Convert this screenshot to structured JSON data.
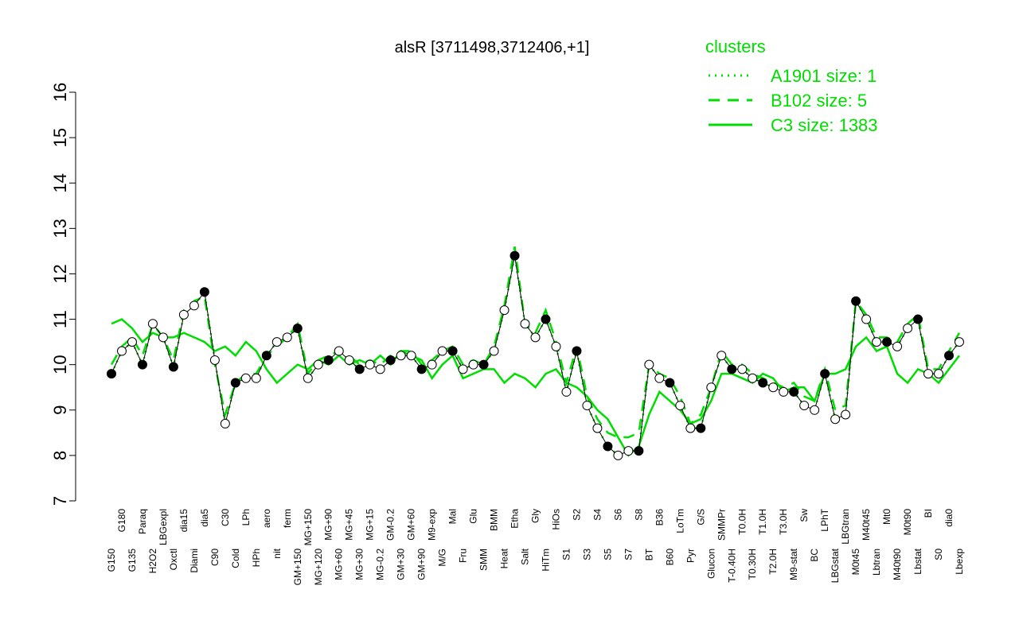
{
  "chart_data": {
    "type": "line",
    "title": "alsR [3711498,3712406,+1]",
    "legend_title": "clusters",
    "categories": [
      "G150",
      "G180",
      "G135",
      "Paraq",
      "H2O2",
      "LBGexpl",
      "Oxctl",
      "dia15",
      "Diami",
      "dia5",
      "C90",
      "C30",
      "Cold",
      "LPh",
      "HPh",
      "aero",
      "nit",
      "ferm",
      "GM+150",
      "MG+150",
      "MG+120",
      "MG+90",
      "MG+60",
      "MG+45",
      "MG+30",
      "MG+15",
      "MG-0.2",
      "GM-0.2",
      "GM+30",
      "GM+60",
      "GM+90",
      "M9-exp",
      "M/G",
      "Mal",
      "Fru",
      "Glu",
      "SMM",
      "BMM",
      "Heat",
      "Etha",
      "Salt",
      "Gly",
      "HiTm",
      "HiOs",
      "S1",
      "S2",
      "S3",
      "S4",
      "S5",
      "S6",
      "S7",
      "S8",
      "BT",
      "B36",
      "B60",
      "LoTm",
      "Pyr",
      "G/S",
      "Glucon",
      "SMMPr",
      "T-0.40H",
      "T0.0H",
      "T0.30H",
      "T1.0H",
      "T2.0H",
      "T3.0H",
      "M9-stat",
      "Sw",
      "BC",
      "LPhT",
      "LBGstat",
      "LBGtran",
      "M0t45",
      "M40t45",
      "Lbtran",
      "Mt0",
      "M40t90",
      "M0t90",
      "Lbstat",
      "BI",
      "S0",
      "dia0",
      "Lbexp"
    ],
    "values": [
      9.8,
      10.3,
      10.5,
      10.0,
      10.9,
      10.6,
      9.95,
      11.1,
      11.3,
      11.6,
      10.1,
      8.7,
      9.6,
      9.7,
      9.7,
      10.2,
      10.5,
      10.6,
      10.8,
      9.7,
      10.0,
      10.1,
      10.3,
      10.1,
      9.9,
      10.0,
      9.9,
      10.1,
      10.2,
      10.2,
      9.9,
      10.0,
      10.3,
      10.3,
      9.9,
      10.0,
      10.0,
      10.3,
      11.2,
      12.4,
      10.9,
      10.6,
      11.0,
      10.4,
      9.4,
      10.3,
      9.1,
      8.6,
      8.2,
      8.0,
      8.1,
      8.1,
      10.0,
      9.7,
      9.6,
      9.1,
      8.6,
      8.6,
      9.5,
      10.2,
      9.9,
      9.9,
      9.7,
      9.6,
      9.5,
      9.4,
      9.4,
      9.1,
      9.0,
      9.8,
      8.8,
      8.9,
      11.4,
      11.0,
      10.5,
      10.5,
      10.4,
      10.8,
      11.0,
      9.8,
      9.8,
      10.2,
      10.5
    ],
    "point_color": "#000000",
    "series": [
      {
        "name": "A1901 size: 1",
        "color": "#00dd00",
        "style": "dotted",
        "values": [
          9.8,
          10.3,
          10.5,
          10.0,
          10.9,
          10.6,
          9.95,
          11.1,
          11.3,
          11.6,
          10.1,
          8.7,
          9.6,
          9.7,
          9.7,
          10.2,
          10.5,
          10.6,
          10.8,
          9.7,
          10.0,
          10.1,
          10.3,
          10.1,
          9.9,
          10.0,
          9.9,
          10.1,
          10.2,
          10.2,
          9.9,
          10.0,
          10.3,
          10.3,
          9.9,
          10.0,
          10.0,
          10.3,
          11.2,
          12.4,
          10.9,
          10.6,
          11.0,
          10.4,
          9.4,
          10.3,
          9.1,
          8.6,
          8.2,
          8.0,
          8.1,
          8.1,
          10.0,
          9.7,
          9.6,
          9.1,
          8.6,
          8.6,
          9.5,
          10.2,
          9.9,
          9.9,
          9.7,
          9.6,
          9.5,
          9.4,
          9.4,
          9.1,
          9.0,
          9.8,
          8.8,
          8.9,
          11.4,
          11.0,
          10.5,
          10.5,
          10.4,
          10.8,
          11.0,
          9.8,
          9.8,
          10.2,
          10.5
        ]
      },
      {
        "name": "B102 size: 5",
        "color": "#00dd00",
        "style": "dashed",
        "values": [
          10.0,
          10.4,
          10.6,
          10.2,
          10.9,
          10.6,
          10.1,
          11.2,
          11.4,
          11.5,
          10.0,
          8.9,
          9.6,
          9.8,
          9.8,
          10.2,
          10.4,
          10.6,
          10.9,
          9.8,
          10.1,
          10.2,
          10.3,
          10.2,
          10.0,
          10.1,
          10.0,
          10.2,
          10.3,
          10.3,
          10.0,
          10.1,
          10.3,
          10.4,
          10.0,
          10.1,
          10.0,
          10.4,
          11.3,
          12.6,
          10.9,
          10.7,
          11.2,
          10.5,
          9.6,
          10.4,
          9.3,
          8.8,
          8.5,
          8.4,
          8.4,
          8.5,
          10.0,
          9.8,
          9.7,
          9.3,
          8.7,
          8.9,
          9.5,
          10.3,
          10.0,
          10.0,
          9.8,
          9.7,
          9.6,
          9.5,
          9.6,
          9.3,
          9.2,
          9.9,
          9.0,
          9.1,
          11.4,
          11.1,
          10.6,
          10.6,
          10.5,
          10.9,
          11.1,
          9.9,
          9.9,
          10.3,
          10.7
        ]
      },
      {
        "name": "C3 size: 1383",
        "color": "#00dd00",
        "style": "solid",
        "values": [
          10.9,
          11.0,
          10.8,
          10.5,
          10.7,
          10.6,
          10.6,
          10.7,
          10.6,
          10.5,
          10.3,
          10.4,
          10.2,
          10.5,
          10.3,
          9.9,
          9.6,
          9.8,
          10.0,
          9.9,
          10.1,
          10.0,
          10.2,
          10.0,
          10.1,
          10.0,
          10.2,
          10.0,
          10.3,
          10.2,
          10.1,
          9.7,
          10.0,
          10.2,
          9.7,
          9.8,
          9.9,
          9.9,
          9.6,
          9.8,
          9.7,
          9.5,
          9.8,
          9.9,
          9.6,
          9.5,
          9.3,
          9.0,
          8.8,
          8.4,
          8.0,
          8.2,
          8.9,
          9.4,
          9.2,
          9.0,
          8.7,
          8.8,
          9.2,
          9.8,
          9.8,
          9.7,
          9.6,
          9.8,
          9.7,
          9.4,
          9.5,
          9.5,
          9.2,
          9.8,
          9.8,
          9.9,
          10.4,
          10.6,
          10.3,
          10.4,
          9.8,
          9.6,
          9.9,
          9.8,
          9.6,
          9.9,
          10.2
        ]
      }
    ],
    "ylim": [
      7,
      16
    ],
    "yticks": [
      7,
      8,
      9,
      10,
      11,
      12,
      13,
      14,
      15,
      16
    ]
  }
}
